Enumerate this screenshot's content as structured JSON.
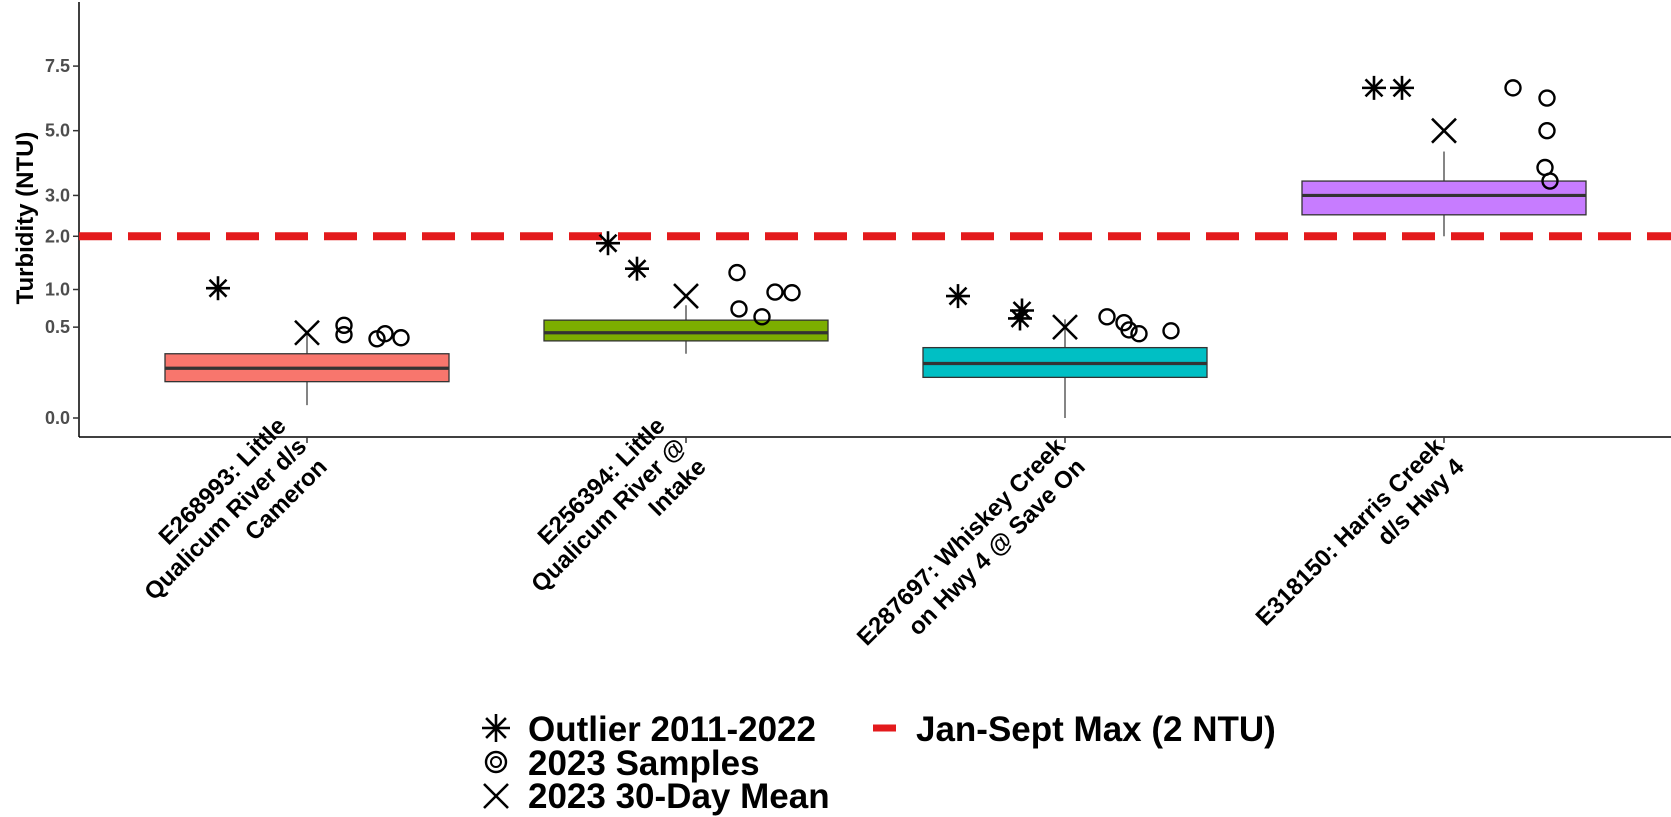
{
  "chart_data": {
    "type": "box",
    "ylabel": "Turbidity (NTU)",
    "y_scale": "square-root",
    "y_ticks": [
      0.0,
      0.5,
      1.0,
      2.0,
      3.0,
      5.0,
      7.5
    ],
    "y_tick_labels": [
      "0.0",
      "0.5",
      "1.0",
      "2.0",
      "3.0",
      "5.0",
      "7.5"
    ],
    "ylim": [
      -0.02,
      8.1
    ],
    "grid": false,
    "legend_position": "bottom",
    "categories": [
      [
        "E268993: Little",
        "Qualicum River d/s",
        "Cameron"
      ],
      [
        "E256394: Little",
        "Qualicum River @",
        "Intake"
      ],
      [
        "E287697: Whiskey Creek",
        "on Hwy 4 @ Save On"
      ],
      [
        "E318150: Harris Creek",
        "d/s Hwy 4"
      ]
    ],
    "series": [
      {
        "station": "E268993",
        "color": "#f8766d",
        "box": {
          "whisker_low": 0.01,
          "q1": 0.08,
          "median": 0.15,
          "q3": 0.25,
          "whisker_high": 0.45
        },
        "outliers_2011_2022": [
          1.02
        ],
        "samples_2023": [
          0.42,
          0.52,
          0.38,
          0.43,
          0.39
        ],
        "mean_30_day_2023": 0.44
      },
      {
        "station": "E256394",
        "color": "#7cae00",
        "box": {
          "whisker_low": 0.25,
          "q1": 0.36,
          "median": 0.44,
          "q3": 0.58,
          "whisker_high": 0.77
        },
        "outliers_2011_2022": [
          1.85,
          1.35
        ],
        "samples_2023": [
          1.28,
          0.72,
          0.62,
          0.96,
          0.95
        ],
        "mean_30_day_2023": 0.9
      },
      {
        "station": "E287697",
        "color": "#00bfc4",
        "box": {
          "whisker_low": 0.0,
          "q1": 0.1,
          "median": 0.18,
          "q3": 0.3,
          "whisker_high": 0.59
        },
        "outliers_2011_2022": [
          0.9,
          0.7,
          0.6
        ],
        "samples_2023": [
          0.62,
          0.55,
          0.47,
          0.43,
          0.46
        ],
        "mean_30_day_2023": 0.5
      },
      {
        "station": "E318150",
        "color": "#c77cff",
        "box": {
          "whisker_low": 2.0,
          "q1": 2.5,
          "median": 3.0,
          "q3": 3.4,
          "whisker_high": 4.3
        },
        "outliers_2011_2022": [
          6.6,
          6.6
        ],
        "samples_2023": [
          6.6,
          6.2,
          5.0,
          3.8,
          3.4
        ],
        "mean_30_day_2023": 5.0
      }
    ],
    "reference_line": {
      "value": 2.0,
      "label": "Jan-Sept Max (2 NTU)",
      "color": "#e31a1c"
    },
    "legend": [
      {
        "symbol": "asterisk",
        "label": "Outlier 2011-2022"
      },
      {
        "symbol": "circle",
        "label": "2023 Samples"
      },
      {
        "symbol": "cross",
        "label": "2023 30-Day Mean"
      },
      {
        "symbol": "dash",
        "label": "Jan-Sept Max (2 NTU)"
      }
    ]
  }
}
